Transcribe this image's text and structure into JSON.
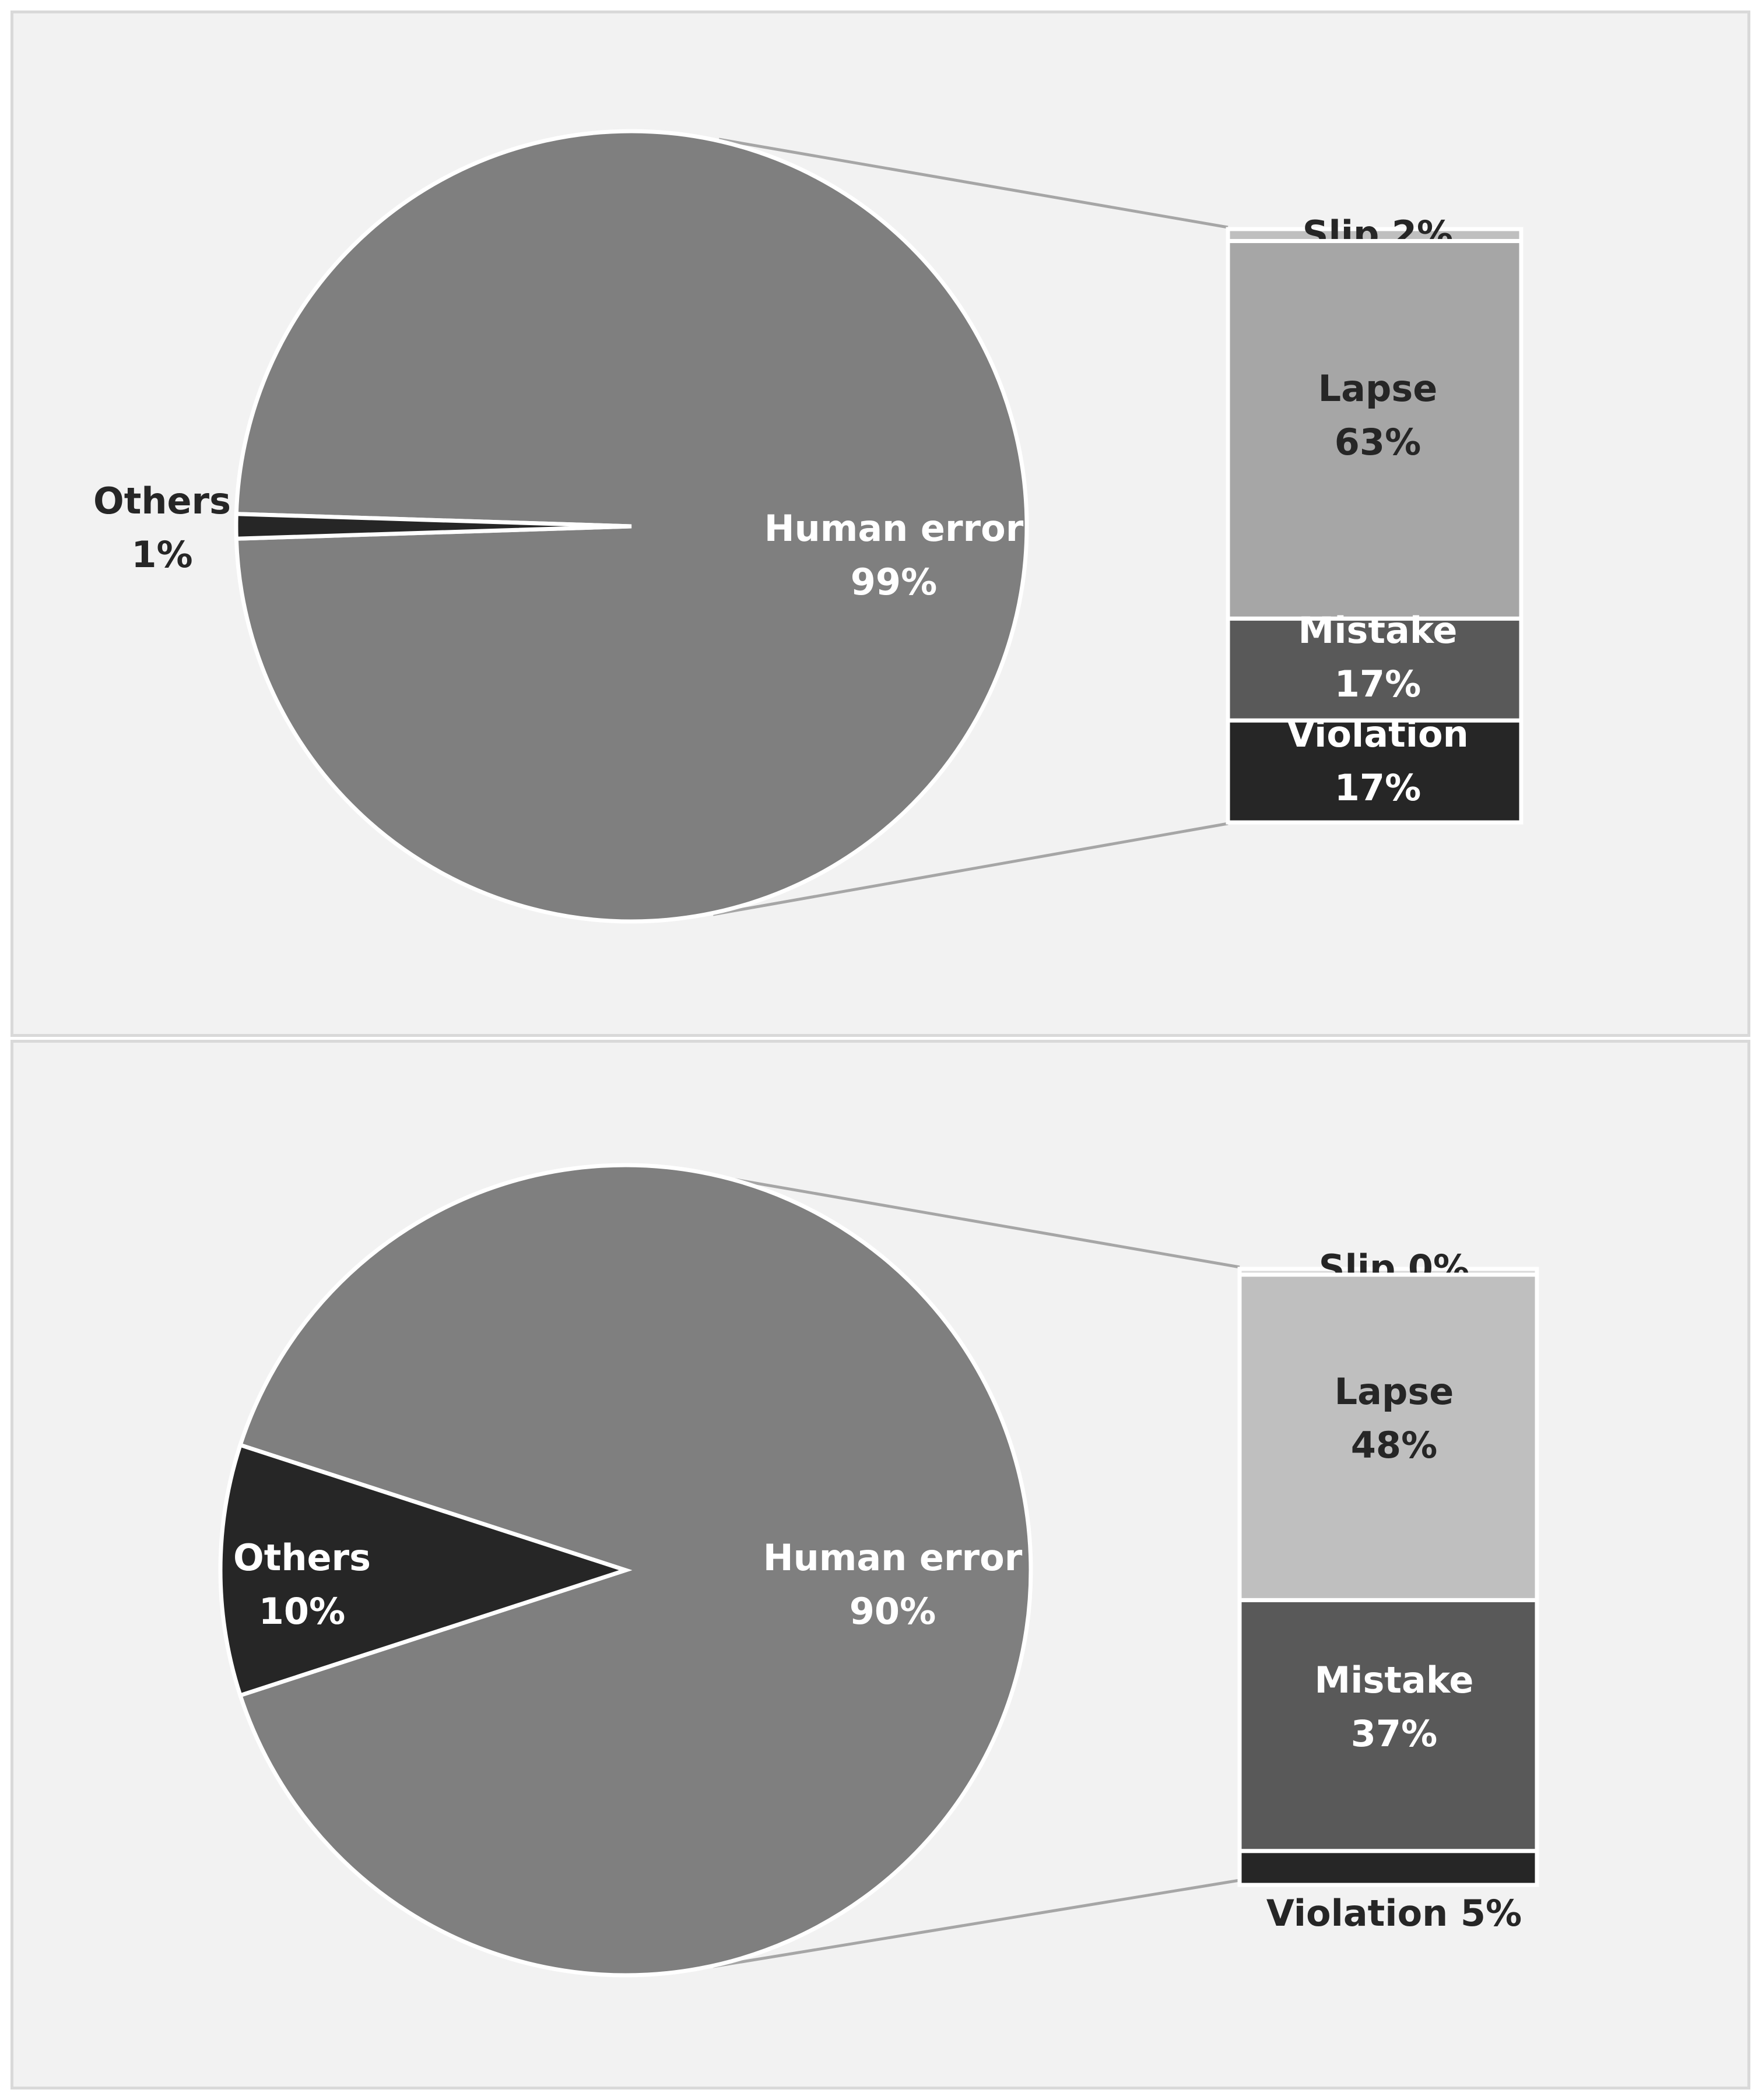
{
  "chart_data": [
    {
      "type": "pie",
      "pie_slices": [
        {
          "label": "Human error",
          "value": 99,
          "percent_label": "99%",
          "color": "#7f7f7f",
          "text_color": "#ffffff"
        },
        {
          "label": "Others",
          "value": 1,
          "percent_label": "1%",
          "color": "#262626",
          "text_color": "#262626"
        }
      ],
      "breakdown_of": "Human error",
      "breakdown": [
        {
          "label": "Slip",
          "value": 2,
          "percent_label": "2%",
          "display": "Slip 2%",
          "color": "#bfbfbf",
          "text_color": "#262626"
        },
        {
          "label": "Lapse",
          "value": 63,
          "percent_label": "63%",
          "color": "#a6a6a6",
          "text_color": "#262626"
        },
        {
          "label": "Mistake",
          "value": 17,
          "percent_label": "17%",
          "color": "#595959",
          "text_color": "#ffffff"
        },
        {
          "label": "Violation",
          "value": 17,
          "percent_label": "17%",
          "color": "#262626",
          "text_color": "#ffffff"
        }
      ]
    },
    {
      "type": "pie",
      "pie_slices": [
        {
          "label": "Human error",
          "value": 90,
          "percent_label": "90%",
          "color": "#7f7f7f",
          "text_color": "#ffffff"
        },
        {
          "label": "Others",
          "value": 10,
          "percent_label": "10%",
          "color": "#262626",
          "text_color": "#ffffff"
        }
      ],
      "breakdown_of": "Human error",
      "breakdown": [
        {
          "label": "Slip",
          "value": 0,
          "percent_label": "0%",
          "display": "Slip 0%",
          "color": "#d9d9d9",
          "text_color": "#262626"
        },
        {
          "label": "Lapse",
          "value": 48,
          "percent_label": "48%",
          "color": "#bfbfbf",
          "text_color": "#262626"
        },
        {
          "label": "Mistake",
          "value": 37,
          "percent_label": "37%",
          "color": "#595959",
          "text_color": "#ffffff"
        },
        {
          "label": "Violation",
          "value": 5,
          "percent_label": "5%",
          "display": "Violation 5%",
          "color": "#262626",
          "text_color": "#262626"
        }
      ]
    }
  ]
}
